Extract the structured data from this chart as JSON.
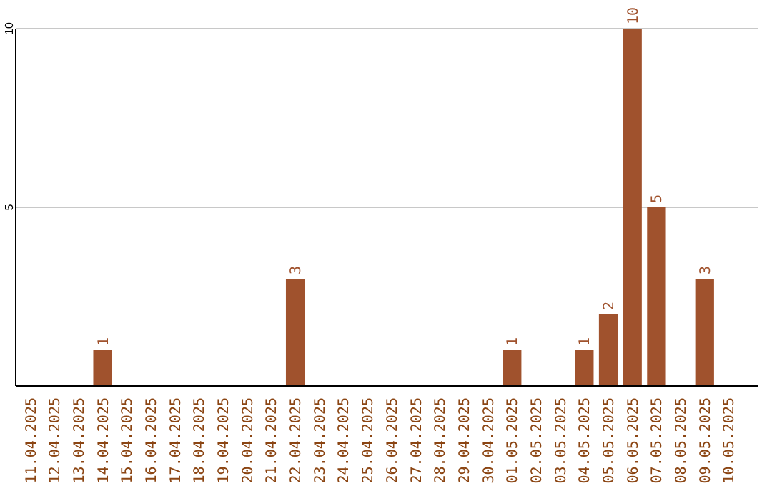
{
  "chart_data": {
    "type": "bar",
    "categories": [
      "11.04.2025",
      "12.04.2025",
      "13.04.2025",
      "14.04.2025",
      "15.04.2025",
      "16.04.2025",
      "17.04.2025",
      "18.04.2025",
      "19.04.2025",
      "20.04.2025",
      "21.04.2025",
      "22.04.2025",
      "23.04.2025",
      "24.04.2025",
      "25.04.2025",
      "26.04.2025",
      "27.04.2025",
      "28.04.2025",
      "29.04.2025",
      "30.04.2025",
      "01.05.2025",
      "02.05.2025",
      "03.05.2025",
      "04.05.2025",
      "05.05.2025",
      "06.05.2025",
      "07.05.2025",
      "08.05.2025",
      "09.05.2025",
      "10.05.2025"
    ],
    "values": [
      0,
      0,
      0,
      1,
      0,
      0,
      0,
      0,
      0,
      0,
      0,
      3,
      0,
      0,
      0,
      0,
      0,
      0,
      0,
      0,
      1,
      0,
      0,
      1,
      2,
      10,
      5,
      0,
      3,
      0
    ],
    "value_labels": [
      null,
      null,
      null,
      "1",
      null,
      null,
      null,
      null,
      null,
      null,
      null,
      "3",
      null,
      null,
      null,
      null,
      null,
      null,
      null,
      null,
      "1",
      null,
      null,
      "1",
      "2",
      "10",
      "5",
      null,
      "3",
      null
    ],
    "color": "#a0522d",
    "ylim": [
      0,
      10
    ],
    "yticks": [
      5,
      10
    ],
    "grid": "y"
  }
}
